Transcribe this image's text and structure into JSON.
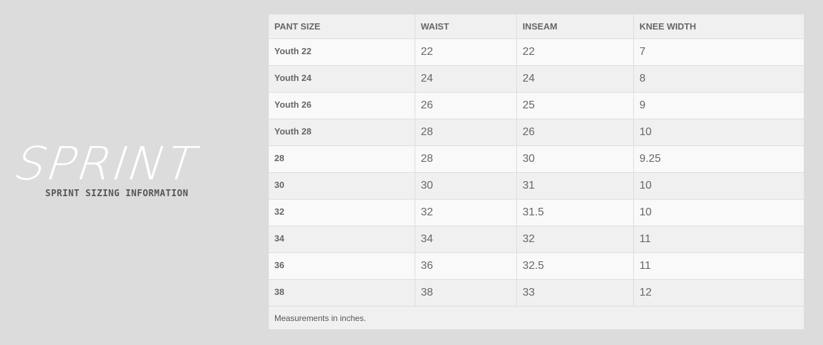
{
  "brand": {
    "logo_text": "SPRINT",
    "subtitle": "SPRINT SIZING INFORMATION"
  },
  "table": {
    "headers": [
      "PANT SIZE",
      "WAIST",
      "INSEAM",
      "KNEE WIDTH"
    ],
    "rows": [
      [
        "Youth 22",
        "22",
        "22",
        "7"
      ],
      [
        "Youth 24",
        "24",
        "24",
        "8"
      ],
      [
        "Youth 26",
        "26",
        "25",
        "9"
      ],
      [
        "Youth 28",
        "28",
        "26",
        "10"
      ],
      [
        "28",
        "28",
        "30",
        "9.25"
      ],
      [
        "30",
        "30",
        "31",
        "10"
      ],
      [
        "32",
        "32",
        "31.5",
        "10"
      ],
      [
        "34",
        "34",
        "32",
        "11"
      ],
      [
        "36",
        "36",
        "32.5",
        "11"
      ],
      [
        "38",
        "38",
        "33",
        "12"
      ]
    ],
    "footnote": "Measurements in inches."
  }
}
